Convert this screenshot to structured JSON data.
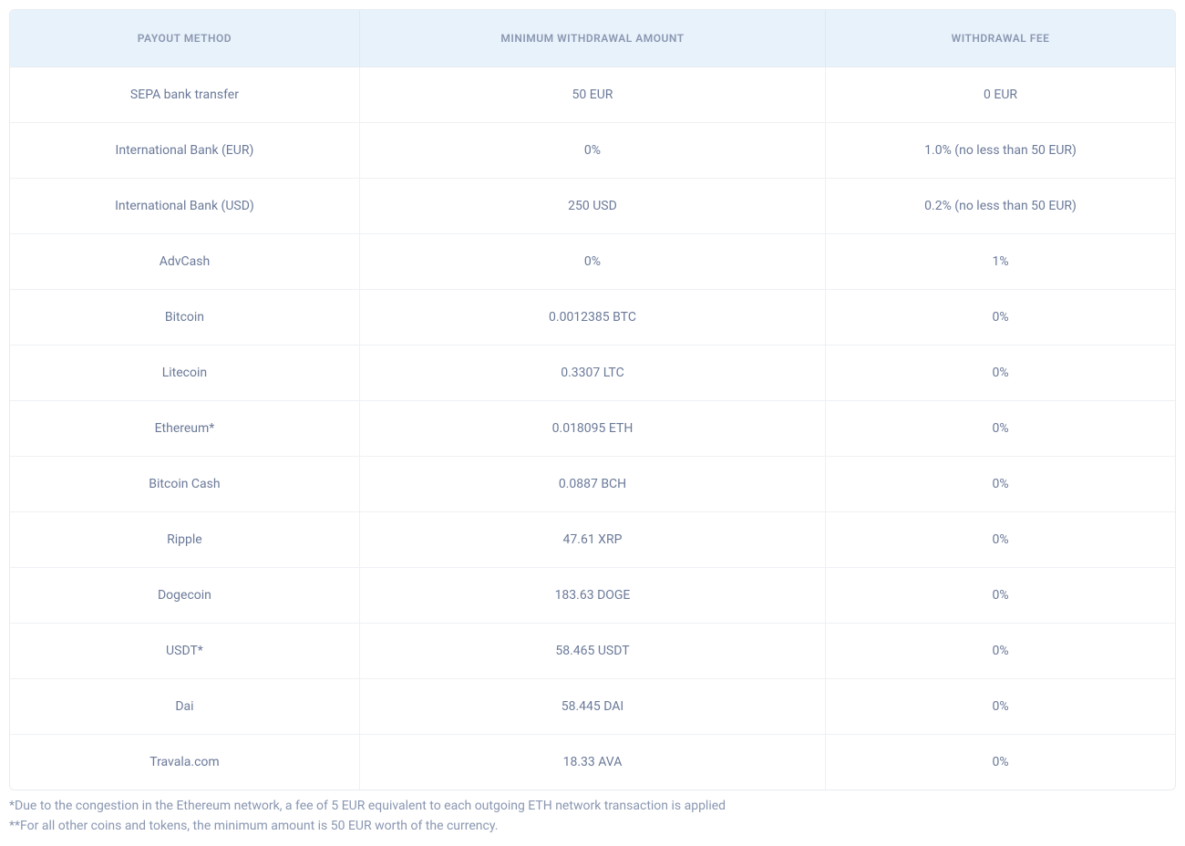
{
  "table": {
    "type": "table",
    "header_background_color": "#e8f2fb",
    "header_text_color": "#8a97b1",
    "body_text_color": "#6b7a99",
    "border_color": "#eef1f4",
    "outer_border_color": "#e8ecef",
    "font_size_body": 14,
    "font_size_header": 12,
    "border_radius": 6,
    "column_widths_pct": [
      30,
      40,
      30
    ],
    "columns": [
      "PAYOUT METHOD",
      "MINIMUM WITHDRAWAL AMOUNT",
      "WITHDRAWAL FEE"
    ],
    "rows": [
      [
        "SEPA bank transfer",
        "50 EUR",
        "0 EUR"
      ],
      [
        "International Bank (EUR)",
        "0%",
        "1.0% (no less than 50 EUR)"
      ],
      [
        "International Bank (USD)",
        "250 USD",
        "0.2% (no less than 50 EUR)"
      ],
      [
        "AdvCash",
        "0%",
        "1%"
      ],
      [
        "Bitcoin",
        "0.0012385 BTC",
        "0%"
      ],
      [
        "Litecoin",
        "0.3307 LTC",
        "0%"
      ],
      [
        "Ethereum*",
        "0.018095 ETH",
        "0%"
      ],
      [
        "Bitcoin Cash",
        "0.0887 BCH",
        "0%"
      ],
      [
        "Ripple",
        "47.61 XRP",
        "0%"
      ],
      [
        "Dogecoin",
        "183.63 DOGE",
        "0%"
      ],
      [
        "USDT*",
        "58.465 USDT",
        "0%"
      ],
      [
        "Dai",
        "58.445 DAI",
        "0%"
      ],
      [
        "Travala.com",
        "18.33 AVA",
        "0%"
      ]
    ]
  },
  "footnotes": {
    "note1": "*Due to the congestion in the Ethereum network, a fee of 5 EUR equivalent to each outgoing ETH network transaction is applied",
    "note2": "**For all other coins and tokens, the minimum amount is 50 EUR worth of the currency."
  }
}
